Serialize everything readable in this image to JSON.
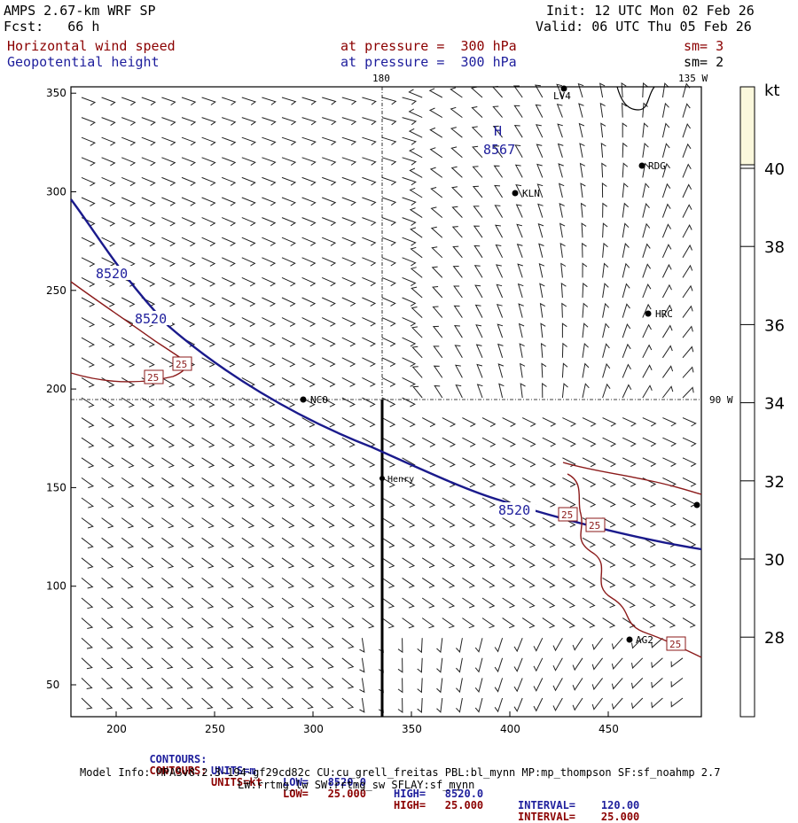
{
  "header": {
    "model": "AMPS 2.67-km WRF SP",
    "init": "Init: 12 UTC Mon 02 Feb 26",
    "fcst": "Fcst:   66 h",
    "valid": "Valid: 06 UTC Thu 05 Feb 26",
    "field1": "Horizontal wind speed",
    "field1_pressure": "at pressure =  300 hPa",
    "field1_sm": "sm= 3",
    "field2": "Geopotential height",
    "field2_pressure": "at pressure =  300 hPa",
    "field2_sm": "sm= 2"
  },
  "map": {
    "lon_labels": [
      "180",
      "135 W",
      "90 W"
    ],
    "x_ticks": [
      "200",
      "250",
      "300",
      "350",
      "400",
      "450"
    ],
    "y_ticks": [
      "50",
      "100",
      "150",
      "200",
      "250",
      "300",
      "350"
    ],
    "stations": [
      {
        "label": "LV4"
      },
      {
        "label": "RDG"
      },
      {
        "label": "KLN"
      },
      {
        "label": "HRC"
      },
      {
        "label": "NCO"
      },
      {
        "label": "Henry"
      },
      {
        "label": "AG2"
      },
      {
        "label": ""
      }
    ],
    "high_label": "H",
    "high_value": "8567",
    "height_contour_labels": [
      "8520",
      "8520",
      "8520"
    ],
    "speed_contour_labels": [
      "25",
      "25",
      "25",
      "25",
      "25"
    ]
  },
  "colorbar": {
    "unit": "kt",
    "labels": [
      "40",
      "38",
      "36",
      "34",
      "32",
      "30",
      "28"
    ],
    "top_fill_color": "#fbf8dc"
  },
  "footer": {
    "c1_label": "CONTOURS:",
    "c1_units": "UNITS=m",
    "c1_low": "LOW=   8520.0",
    "c1_high": "HIGH=   8520.0",
    "c1_interval": "INTERVAL=    120.00",
    "c2_label": "CONTOURS:",
    "c2_units": "UNITS=kt",
    "c2_low": "LOW=   25.000",
    "c2_high": "HIGH=   25.000",
    "c2_interval": "INTERVAL=    25.000",
    "model_info": "Model Info: MPASv8.2.3-194-gf29cd82c CU:cu_grell_freitas PBL:bl_mynn MP:mp_thompson SF:sf_noahmp 2.7",
    "model_info2": "LW:rrtmg_lw SW:rrtmg_sw SFLAY:sf_mynn"
  },
  "colors": {
    "height_contour": "#1a1a8c",
    "speed_contour": "#8b1a1a",
    "text_red": "#8b0000",
    "text_blue": "#1e1e9c"
  }
}
